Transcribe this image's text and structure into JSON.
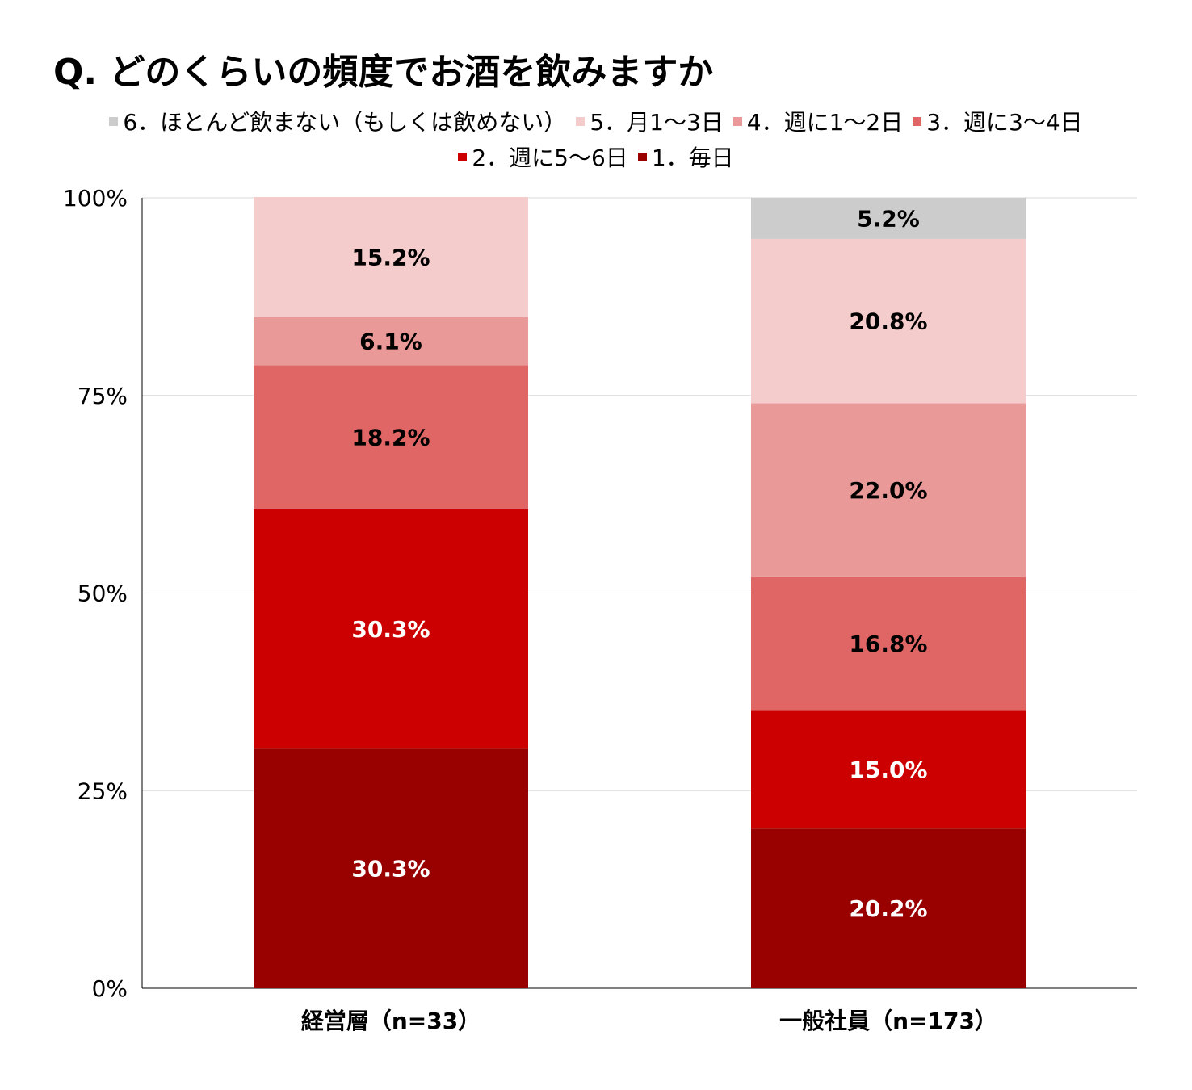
{
  "chart_data": {
    "type": "bar",
    "stacked": true,
    "title": "Q. どのくらいの頻度でお酒を飲みますか",
    "categories": [
      "経営層（n=33）",
      "一般社員（n=173）"
    ],
    "series": [
      {
        "name": "1．毎日",
        "values": [
          30.3,
          20.2
        ],
        "color": "#990000",
        "label_color": "#ffffff"
      },
      {
        "name": "2．週に5～6日",
        "values": [
          30.3,
          15.0
        ],
        "color": "#cc0000",
        "label_color": "#ffffff"
      },
      {
        "name": "3．週に3～4日",
        "values": [
          18.2,
          16.8
        ],
        "color": "#e06666",
        "label_color": "#000000"
      },
      {
        "name": "4．週に1～2日",
        "values": [
          6.1,
          22.0
        ],
        "color": "#ea9999",
        "label_color": "#000000"
      },
      {
        "name": "5．月1～3日",
        "values": [
          15.2,
          20.8
        ],
        "color": "#f4cccc",
        "label_color": "#000000"
      },
      {
        "name": "6．ほとんど飲まない（もしくは飲めない）",
        "values": [
          0,
          5.2
        ],
        "color": "#cccccc",
        "label_color": "#000000"
      }
    ],
    "ylim": [
      0,
      100
    ],
    "yticks": [
      0,
      25,
      50,
      75,
      100
    ],
    "ytick_labels": [
      "0%",
      "25%",
      "50%",
      "75%",
      "100%"
    ],
    "xlabel": "",
    "ylabel": "",
    "legend_position": "top",
    "grid": true
  }
}
